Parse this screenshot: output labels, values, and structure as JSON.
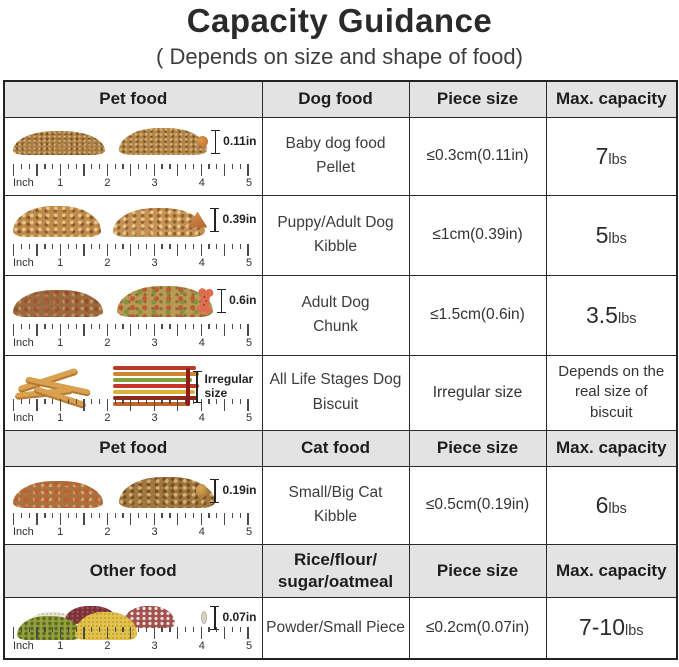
{
  "title": "Capacity Guidance",
  "subtitle": "( Depends on size and shape of food)",
  "ruler": {
    "unit": "Inch",
    "marks": [
      "1",
      "2",
      "3",
      "4",
      "5"
    ]
  },
  "headers": [
    {
      "col1": "Pet food",
      "col2": "Dog food",
      "col3": "Piece size",
      "col4": "Max. capacity"
    },
    {
      "col1": "Pet food",
      "col2": "Cat food",
      "col3": "Piece size",
      "col4": "Max. capacity"
    },
    {
      "col1": "Other food",
      "col2_line1": "Rice/flour/",
      "col2_line2": "sugar/oatmeal",
      "col3": "Piece size",
      "col4": "Max. capacity"
    }
  ],
  "rows": [
    {
      "name_line1": "Baby dog food",
      "name_line2": "Pellet",
      "piece_size": "≤0.3cm(0.11in)",
      "capacity": "7",
      "capacity_unit": "lbs",
      "sample_label": "0.11in"
    },
    {
      "name_line1": "Puppy/Adult Dog",
      "name_line2": "Kibble",
      "piece_size": "≤1cm(0.39in)",
      "capacity": "5",
      "capacity_unit": "lbs",
      "sample_label": "0.39in"
    },
    {
      "name_line1": "Adult Dog",
      "name_line2": "Chunk",
      "piece_size": "≤1.5cm(0.6in)",
      "capacity": "3.5",
      "capacity_unit": "lbs",
      "sample_label": "0.6in"
    },
    {
      "name_line1": "All Life Stages Dog",
      "name_line2": "Biscuit",
      "piece_size": "Irregular size",
      "capacity_note": "Depends on the real size of biscuit",
      "sample_label": "Irregular size"
    },
    {
      "name_line1": "Small/Big Cat",
      "name_line2": "Kibble",
      "piece_size": "≤0.5cm(0.19in)",
      "capacity": "6",
      "capacity_unit": "lbs",
      "sample_label": "0.19in"
    },
    {
      "name_line1": "Powder/Small Piece",
      "name_line2": "",
      "piece_size": "≤0.2cm(0.07in)",
      "capacity": "7-10",
      "capacity_unit": "lbs",
      "sample_label": "0.07in"
    }
  ]
}
